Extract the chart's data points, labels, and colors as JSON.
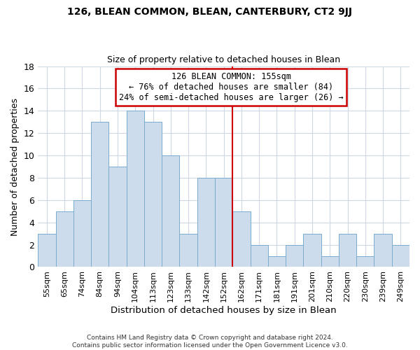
{
  "title": "126, BLEAN COMMON, BLEAN, CANTERBURY, CT2 9JJ",
  "subtitle": "Size of property relative to detached houses in Blean",
  "xlabel": "Distribution of detached houses by size in Blean",
  "ylabel": "Number of detached properties",
  "footer_line1": "Contains HM Land Registry data © Crown copyright and database right 2024.",
  "footer_line2": "Contains public sector information licensed under the Open Government Licence v3.0.",
  "categories": [
    "55sqm",
    "65sqm",
    "74sqm",
    "84sqm",
    "94sqm",
    "104sqm",
    "113sqm",
    "123sqm",
    "133sqm",
    "142sqm",
    "152sqm",
    "162sqm",
    "171sqm",
    "181sqm",
    "191sqm",
    "201sqm",
    "210sqm",
    "220sqm",
    "230sqm",
    "239sqm",
    "249sqm"
  ],
  "values": [
    3,
    5,
    6,
    13,
    9,
    14,
    13,
    10,
    3,
    8,
    8,
    5,
    2,
    1,
    2,
    3,
    1,
    3,
    1,
    3,
    2
  ],
  "bar_color": "#ccdcec",
  "bar_edge_color": "#7aaccf",
  "ylim": [
    0,
    18
  ],
  "yticks": [
    0,
    2,
    4,
    6,
    8,
    10,
    12,
    14,
    16,
    18
  ],
  "annotation_title": "126 BLEAN COMMON: 155sqm",
  "annotation_line1": "← 76% of detached houses are smaller (84)",
  "annotation_line2": "24% of semi-detached houses are larger (26) →",
  "annotation_box_color": "#ffffff",
  "annotation_box_edge": "#cc0000",
  "vline_color": "#cc0000",
  "bg_color": "#ffffff",
  "plot_bg_color": "#ffffff",
  "grid_color": "#d0d8e8",
  "title_fontsize": 10,
  "subtitle_fontsize": 9
}
